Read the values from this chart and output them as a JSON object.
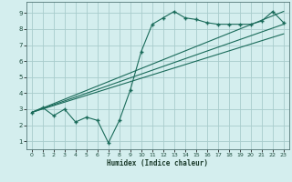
{
  "xlabel": "Humidex (Indice chaleur)",
  "ylabel": "",
  "xlim": [
    -0.5,
    23.5
  ],
  "ylim": [
    0.5,
    9.7
  ],
  "xticks": [
    0,
    1,
    2,
    3,
    4,
    5,
    6,
    7,
    8,
    9,
    10,
    11,
    12,
    13,
    14,
    15,
    16,
    17,
    18,
    19,
    20,
    21,
    22,
    23
  ],
  "yticks": [
    1,
    2,
    3,
    4,
    5,
    6,
    7,
    8,
    9
  ],
  "bg_color": "#d4eeee",
  "line_color": "#1a6b5a",
  "grid_color": "#a8cccc",
  "main_curve_x": [
    0,
    1,
    2,
    3,
    4,
    5,
    6,
    7,
    8,
    9,
    10,
    11,
    12,
    13,
    14,
    15,
    16,
    17,
    18,
    19,
    20,
    21,
    22,
    23
  ],
  "main_curve_y": [
    2.8,
    3.1,
    2.6,
    3.0,
    2.2,
    2.5,
    2.3,
    0.9,
    2.3,
    4.2,
    6.6,
    8.3,
    8.7,
    9.1,
    8.7,
    8.6,
    8.4,
    8.3,
    8.3,
    8.3,
    8.3,
    8.5,
    9.1,
    8.4
  ],
  "line1_x": [
    0,
    23
  ],
  "line1_y": [
    2.8,
    8.3
  ],
  "line2_x": [
    0,
    23
  ],
  "line2_y": [
    2.8,
    7.7
  ],
  "line3_x": [
    0,
    23
  ],
  "line3_y": [
    2.8,
    9.1
  ]
}
